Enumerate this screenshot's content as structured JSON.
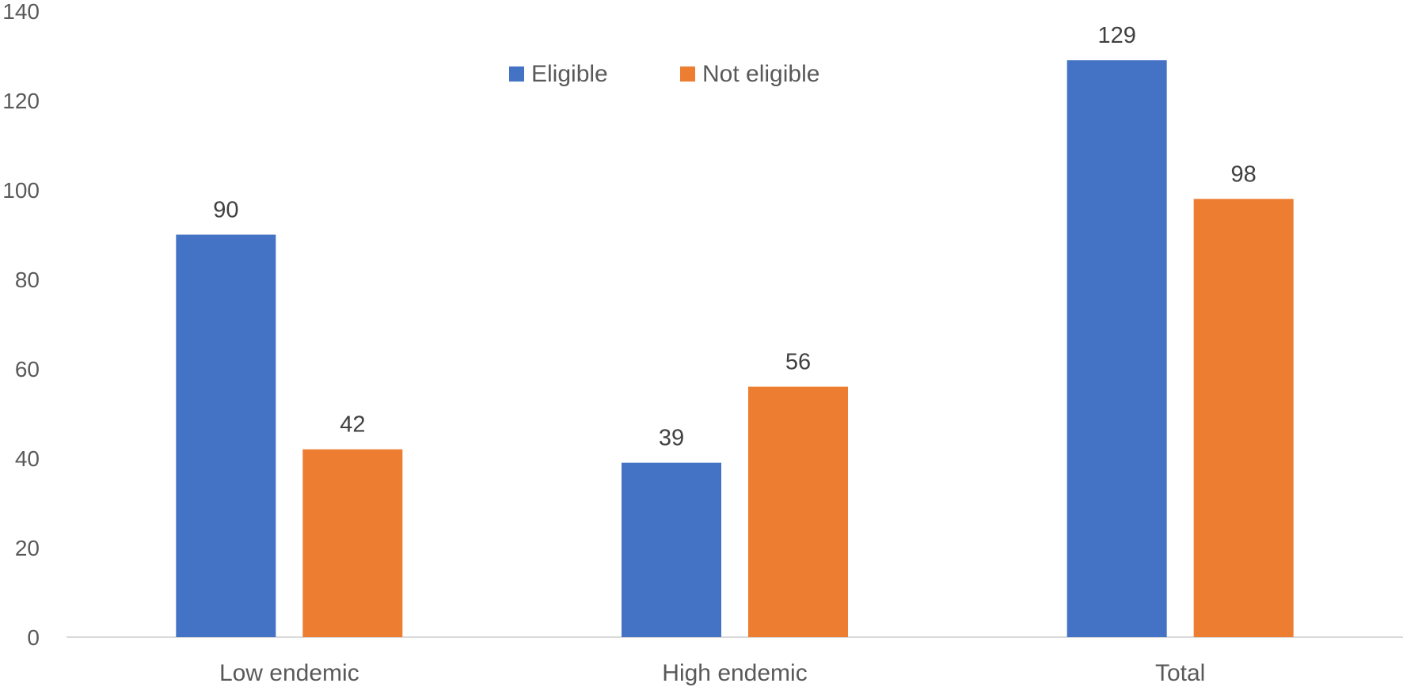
{
  "chart_data": {
    "type": "bar",
    "title": "",
    "xlabel": "",
    "ylabel": "",
    "categories": [
      "Low endemic",
      "High endemic",
      "Total"
    ],
    "series": [
      {
        "name": "Eligible",
        "color": "#4472C4",
        "values": [
          90,
          39,
          129
        ]
      },
      {
        "name": "Not eligible",
        "color": "#ED7D31",
        "values": [
          42,
          56,
          98
        ]
      }
    ],
    "ylim": [
      0,
      140
    ],
    "yticks": [
      0,
      20,
      40,
      60,
      80,
      100,
      120,
      140
    ],
    "grid": false,
    "legend_position": "top-center",
    "data_labels": true
  }
}
